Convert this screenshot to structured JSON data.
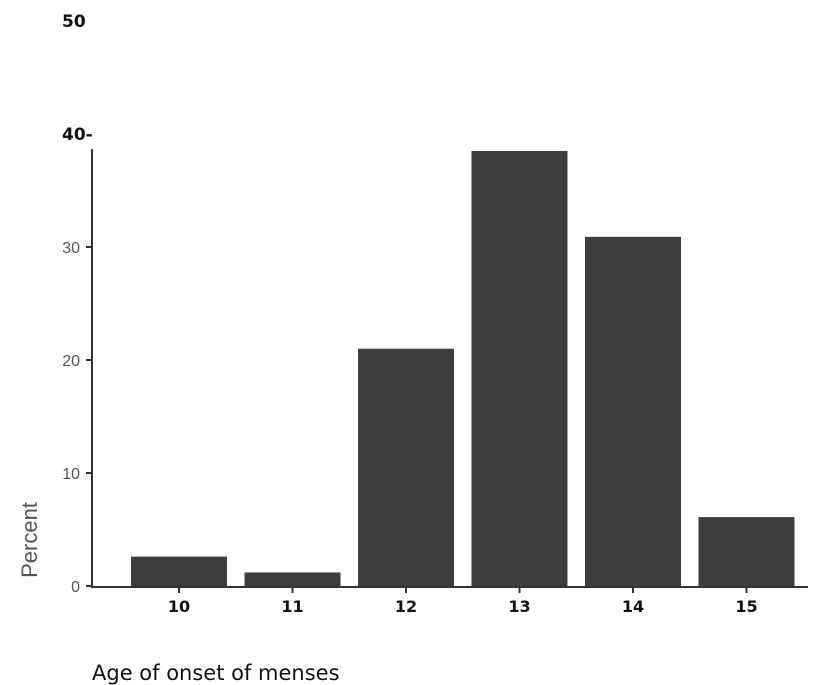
{
  "chart_data": {
    "type": "bar",
    "categories": [
      "10",
      "11",
      "12",
      "13",
      "14",
      "15"
    ],
    "values": [
      2.6,
      1.2,
      21.0,
      38.5,
      30.9,
      6.1
    ],
    "xlabel": "Age of onset of menses",
    "ylabel": "Percent",
    "ylim": [
      0,
      50
    ],
    "y_ticks": [
      0,
      10,
      20,
      30
    ],
    "y_tick_labels": [
      "0",
      "10",
      "20",
      "30"
    ],
    "y_upper_labels": [
      "40-",
      "50"
    ],
    "bar_color": "#3d3d40",
    "grid": false
  }
}
